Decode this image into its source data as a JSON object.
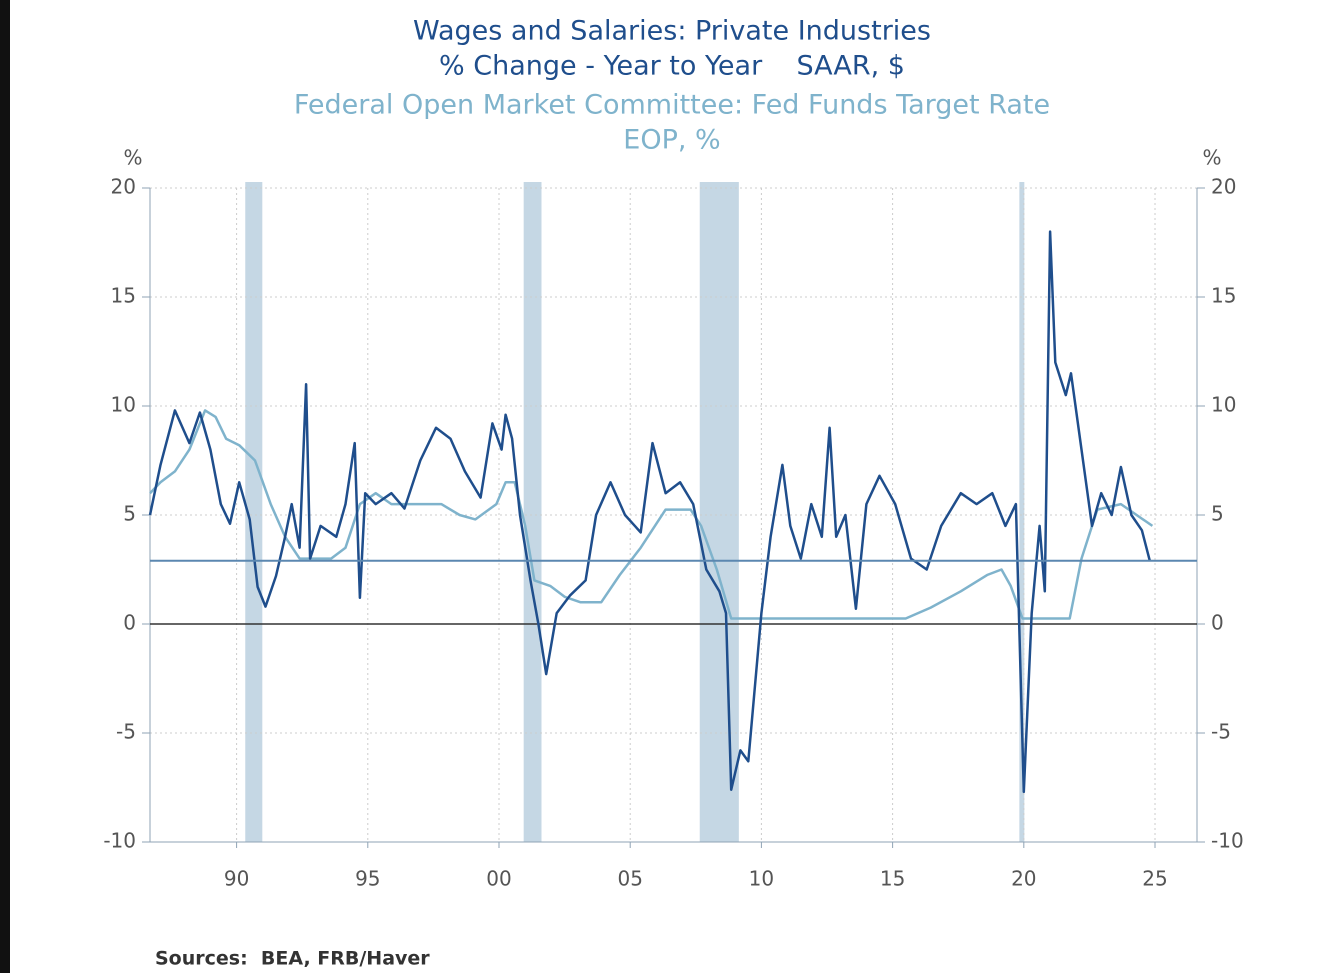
{
  "chart_data": {
    "type": "line",
    "title": "Wages and Salaries: Private Industries",
    "subtitle": "% Change - Year to Year    SAAR, $",
    "title2": "Federal Open Market Committee: Fed Funds Target Rate",
    "subtitle2": "EOP, %",
    "ylabel": "%",
    "y2label": "%",
    "source": "Sources:  BEA, FRB/Haver",
    "xlim": [
      1986.7,
      2026.6
    ],
    "xticks": [
      {
        "value": 1990,
        "label": "90"
      },
      {
        "value": 1995,
        "label": "95"
      },
      {
        "value": 2000,
        "label": "00"
      },
      {
        "value": 2005,
        "label": "05"
      },
      {
        "value": 2010,
        "label": "10"
      },
      {
        "value": 2015,
        "label": "15"
      },
      {
        "value": 2020,
        "label": "20"
      },
      {
        "value": 2025,
        "label": "25"
      }
    ],
    "ylim": [
      -10,
      20
    ],
    "yticks": [
      -10,
      -5,
      0,
      5,
      10,
      15,
      20
    ],
    "y2lim": [
      -10,
      20
    ],
    "y2ticks": [
      -10,
      -5,
      0,
      5,
      10,
      15,
      20
    ],
    "grid": true,
    "reference_line": 2.9,
    "reference_color": "#5b87b0",
    "recession_color": "#c5d7e4",
    "recessions": [
      {
        "start": 1990.33,
        "end": 1990.98
      },
      {
        "start": 2000.94,
        "end": 2001.62
      },
      {
        "start": 2007.65,
        "end": 2009.14
      },
      {
        "start": 2019.83,
        "end": 2020.02
      }
    ],
    "series": [
      {
        "name": "Wages and Salaries: Private Industries",
        "color": "#1f4e8c",
        "x": [
          1986.7,
          1987.1,
          1987.65,
          1988.2,
          1988.6,
          1989.0,
          1989.4,
          1989.75,
          1990.1,
          1990.5,
          1990.8,
          1991.1,
          1991.5,
          1991.85,
          1992.1,
          1992.4,
          1992.65,
          1992.8,
          1993.2,
          1993.8,
          1994.15,
          1994.5,
          1994.7,
          1994.9,
          1995.3,
          1995.9,
          1996.4,
          1997.0,
          1997.6,
          1998.15,
          1998.7,
          1999.3,
          1999.75,
          2000.1,
          2000.25,
          2000.5,
          2000.8,
          2001.2,
          2001.5,
          2001.8,
          2002.2,
          2002.7,
          2003.3,
          2003.7,
          2004.25,
          2004.8,
          2005.4,
          2005.85,
          2006.35,
          2006.9,
          2007.4,
          2007.9,
          2008.4,
          2008.65,
          2008.85,
          2009.2,
          2009.5,
          2010.0,
          2010.35,
          2010.8,
          2011.1,
          2011.5,
          2011.9,
          2012.3,
          2012.6,
          2012.85,
          2013.2,
          2013.6,
          2014.0,
          2014.5,
          2015.1,
          2015.7,
          2016.3,
          2016.85,
          2017.6,
          2018.2,
          2018.8,
          2019.3,
          2019.7,
          2020.0,
          2020.3,
          2020.6,
          2020.8,
          2021.0,
          2021.2,
          2021.6,
          2021.8,
          2022.2,
          2022.6,
          2022.95,
          2023.35,
          2023.7,
          2024.1,
          2024.5,
          2024.8
        ],
        "values": [
          5.0,
          7.3,
          9.8,
          8.3,
          9.7,
          8.0,
          5.5,
          4.6,
          6.5,
          4.8,
          1.7,
          0.8,
          2.2,
          4.0,
          5.5,
          3.5,
          11.0,
          3.0,
          4.5,
          4.0,
          5.5,
          8.3,
          1.2,
          6.0,
          5.5,
          6.0,
          5.3,
          7.5,
          9.0,
          8.5,
          7.0,
          5.8,
          9.2,
          8.0,
          9.6,
          8.5,
          5.0,
          2.0,
          0.0,
          -2.3,
          0.5,
          1.3,
          2.0,
          5.0,
          6.5,
          5.0,
          4.2,
          8.3,
          6.0,
          6.5,
          5.5,
          2.5,
          1.5,
          0.5,
          -7.6,
          -5.8,
          -6.3,
          0.5,
          4.0,
          7.3,
          4.5,
          3.0,
          5.5,
          4.0,
          9.0,
          4.0,
          5.0,
          0.7,
          5.5,
          6.8,
          5.5,
          3.0,
          2.5,
          4.5,
          6.0,
          5.5,
          6.0,
          4.5,
          5.5,
          -7.7,
          0.5,
          4.5,
          1.5,
          18.0,
          12.0,
          10.5,
          11.5,
          8.0,
          4.5,
          6.0,
          5.0,
          7.2,
          5.0,
          4.3,
          2.9
        ]
      },
      {
        "name": "Federal Open Market Committee: Fed Funds Target Rate",
        "color": "#7fb3cc",
        "axis": "y2",
        "x": [
          1986.7,
          1987.1,
          1987.65,
          1988.2,
          1988.8,
          1989.2,
          1989.6,
          1990.1,
          1990.7,
          1991.3,
          1991.85,
          1992.4,
          1993.6,
          1994.15,
          1994.7,
          1995.3,
          1995.9,
          1997.0,
          1997.8,
          1998.5,
          1999.1,
          1999.9,
          2000.25,
          2000.6,
          2001.0,
          2001.35,
          2001.95,
          2002.5,
          2003.1,
          2003.9,
          2004.6,
          2005.4,
          2006.35,
          2007.3,
          2007.7,
          2008.3,
          2008.85,
          2015.5,
          2016.45,
          2017.6,
          2018.6,
          2019.15,
          2019.5,
          2019.95,
          2021.75,
          2022.2,
          2022.8,
          2023.7,
          2024.3,
          2024.9
        ],
        "values": [
          6.0,
          6.5,
          7.0,
          8.0,
          9.8,
          9.5,
          8.5,
          8.2,
          7.5,
          5.5,
          4.0,
          3.0,
          3.0,
          3.5,
          5.5,
          6.0,
          5.5,
          5.5,
          5.5,
          5.0,
          4.8,
          5.5,
          6.5,
          6.5,
          4.5,
          2.0,
          1.75,
          1.25,
          1.0,
          1.0,
          2.25,
          3.5,
          5.25,
          5.25,
          4.5,
          2.5,
          0.25,
          0.25,
          0.75,
          1.5,
          2.25,
          2.5,
          1.75,
          0.25,
          0.25,
          3.0,
          5.25,
          5.5,
          5.0,
          4.5
        ]
      }
    ]
  }
}
